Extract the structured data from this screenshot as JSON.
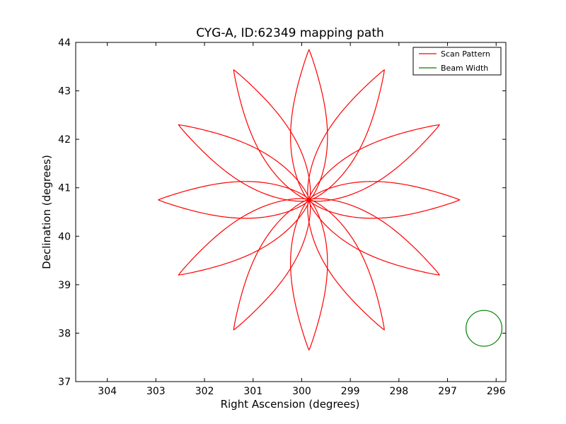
{
  "chart_data": {
    "type": "line",
    "title": "CYG-A, ID:62349 mapping path",
    "xlabel": "Right Ascension (degrees)",
    "ylabel": "Declination (degrees)",
    "xlim": [
      304.65,
      295.8
    ],
    "ylim": [
      37,
      44
    ],
    "x_ticks": [
      "304",
      "303",
      "302",
      "301",
      "300",
      "299",
      "298",
      "297",
      "296"
    ],
    "x_tick_values": [
      304,
      303,
      302,
      301,
      300,
      299,
      298,
      297,
      296
    ],
    "y_ticks": [
      "37",
      "38",
      "39",
      "40",
      "41",
      "42",
      "43",
      "44"
    ],
    "y_tick_values": [
      37,
      38,
      39,
      40,
      41,
      42,
      43,
      44
    ],
    "grid": false,
    "legend_position": "top-right",
    "series": [
      {
        "name": "Scan Pattern",
        "color": "#ff0000",
        "petal_center": [
          299.85,
          40.75
        ],
        "petal_count": 12,
        "petal_tip_angles_deg": [
          90,
          60,
          30,
          0,
          -30,
          -60,
          -90,
          -120,
          -150,
          180,
          150,
          120
        ],
        "petal_length_deg": 3.1,
        "petal_halfwidth_deg": 0.38
      },
      {
        "name": "Beam Width",
        "color": "#008000",
        "center": [
          296.25,
          38.1
        ],
        "radius_deg": 0.37
      }
    ]
  }
}
